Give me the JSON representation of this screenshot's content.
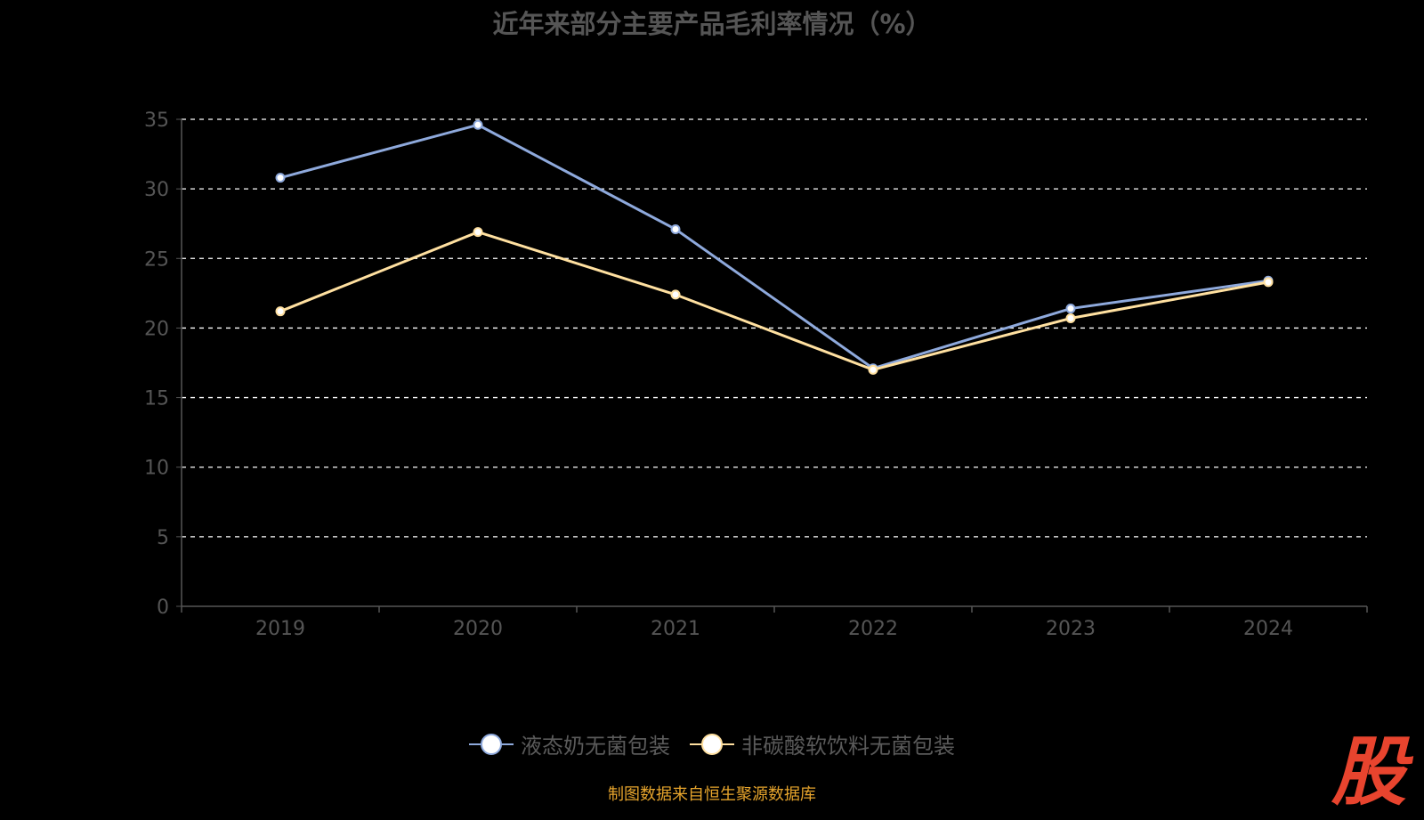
{
  "chart_data": {
    "type": "line",
    "title": "近年来部分主要产品毛利率情况（%）",
    "categories": [
      "2019",
      "2020",
      "2021",
      "2022",
      "2023",
      "2024"
    ],
    "ylim": [
      0,
      35
    ],
    "yticks": [
      0,
      5,
      10,
      15,
      20,
      25,
      30,
      35
    ],
    "grid": true,
    "legend_position": "bottom",
    "series": [
      {
        "name": "液态奶无菌包装",
        "values": [
          30.8,
          34.6,
          27.1,
          17.1,
          21.4,
          23.4
        ],
        "color": "#8ea9dc"
      },
      {
        "name": "非碳酸软饮料无菌包装",
        "values": [
          21.2,
          26.9,
          22.4,
          17.0,
          20.7,
          23.3
        ],
        "color": "#ffe0a0"
      }
    ]
  },
  "source": "制图数据来自恒生聚源数据库",
  "watermark": "股"
}
